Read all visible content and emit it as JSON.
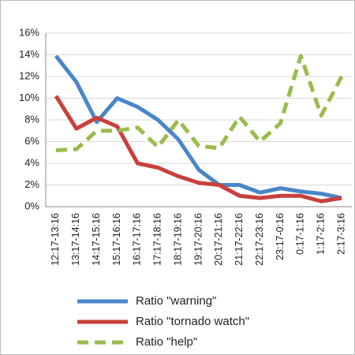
{
  "chart_data": {
    "type": "line",
    "categories": [
      "12:17-13:16",
      "13:17-14:16",
      "14:17-15:16",
      "15:17-16:16",
      "16:17-17:16",
      "17:17-18:16",
      "18:17-19:16",
      "19:17-20:16",
      "20:17-21:16",
      "21:17-22:16",
      "22:17-23:16",
      "23:17-0:16",
      "0:17-1:16",
      "1:17-2:16",
      "2:17-3:16"
    ],
    "series": [
      {
        "name": "Ratio \"warning\"",
        "color": "#4a86c8",
        "values": [
          13.9,
          11.5,
          7.8,
          10.0,
          9.2,
          8.0,
          6.2,
          3.4,
          2.0,
          2.0,
          1.3,
          1.7,
          1.4,
          1.2,
          0.8
        ]
      },
      {
        "name": "Ratio \"tornado watch\"",
        "color": "#c9403c",
        "values": [
          10.2,
          7.2,
          8.2,
          7.4,
          4.0,
          3.6,
          2.8,
          2.2,
          2.0,
          1.0,
          0.8,
          1.0,
          1.0,
          0.5,
          0.8
        ]
      },
      {
        "name": "Ratio \"help\"",
        "color": "#9bbb4d",
        "line_style": "dashed",
        "values": [
          5.2,
          5.3,
          7.0,
          7.0,
          7.3,
          5.5,
          8.0,
          5.6,
          5.4,
          8.3,
          6.0,
          7.7,
          13.9,
          8.4,
          12.0
        ]
      }
    ],
    "ylim": [
      0,
      16
    ],
    "yticks": [
      {
        "value": 0,
        "label": "0%"
      },
      {
        "value": 2,
        "label": "2%"
      },
      {
        "value": 4,
        "label": "4%"
      },
      {
        "value": 6,
        "label": "6%"
      },
      {
        "value": 8,
        "label": "8%"
      },
      {
        "value": 10,
        "label": "10%"
      },
      {
        "value": 12,
        "label": "12%"
      },
      {
        "value": 14,
        "label": "14%"
      },
      {
        "value": 16,
        "label": "16%"
      }
    ],
    "grid": true,
    "legend": "bottom"
  }
}
